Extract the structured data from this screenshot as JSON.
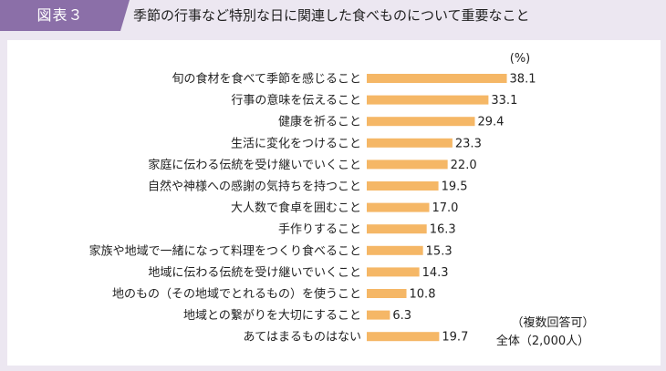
{
  "header": {
    "figure_label": "図表３",
    "title": "季節の行事など特別な日に関連した食べものについて重要なこと"
  },
  "colors": {
    "bar": "#f5b766",
    "header_bg": "#8b6fa8",
    "background": "#ece7f1"
  },
  "chart_data": {
    "type": "bar",
    "orientation": "horizontal",
    "unit_label": "(%)",
    "categories": [
      "旬の食材を食べて季節を感じること",
      "行事の意味を伝えること",
      "健康を祈ること",
      "生活に変化をつけること",
      "家庭に伝わる伝統を受け継いでいくこと",
      "自然や神様への感謝の気持ちを持つこと",
      "大人数で食卓を囲むこと",
      "手作りすること",
      "家族や地域で一緒になって料理をつくり食べること",
      "地域に伝わる伝統を受け継いでいくこと",
      "地のもの（その地域でとれるもの）を使うこと",
      "地域との繋がりを大切にすること",
      "あてはまるものはない"
    ],
    "values": [
      38.1,
      33.1,
      29.4,
      23.3,
      22.0,
      19.5,
      17.0,
      16.3,
      15.3,
      14.3,
      10.8,
      6.3,
      19.7
    ],
    "value_labels": [
      "38.1",
      "33.1",
      "29.4",
      "23.3",
      "22.0",
      "19.5",
      "17.0",
      "16.3",
      "15.3",
      "14.3",
      "10.8",
      "6.3",
      "19.7"
    ],
    "xlim": [
      0,
      40
    ],
    "notes": [
      "（複数回答可）",
      "全体（2,000人）"
    ]
  }
}
